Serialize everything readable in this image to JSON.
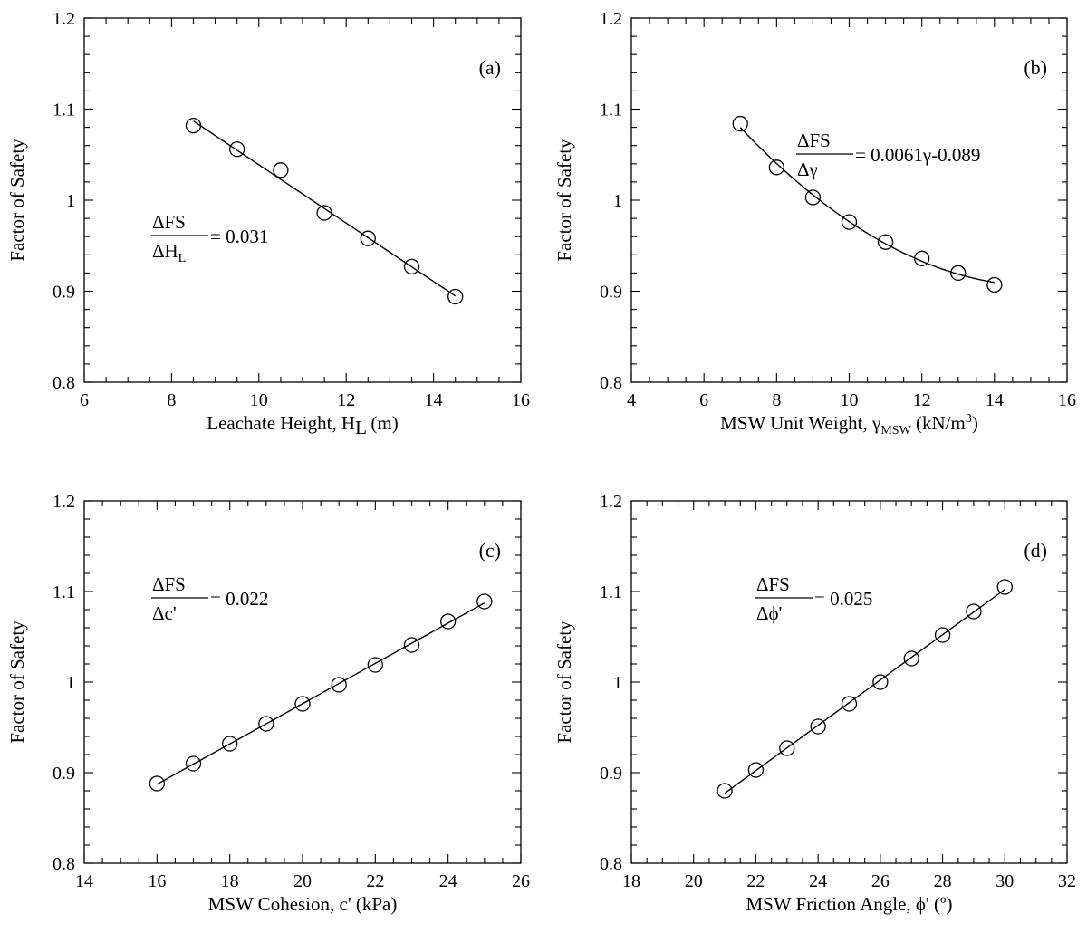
{
  "chart_data": [
    {
      "type": "scatter",
      "panel_tag": "(a)",
      "xlabel": {
        "text": "Leachate Height, H",
        "sub": "L",
        "tail": " (m)"
      },
      "ylabel": "Factor of Safety",
      "xlim": [
        6,
        16
      ],
      "ylim": [
        0.8,
        1.2
      ],
      "x_ticks": [
        "6",
        "8",
        "10",
        "12",
        "14",
        "16"
      ],
      "y_ticks": [
        "0.8",
        "0.9",
        "1",
        "1.1",
        "1.2"
      ],
      "x_minor_step": 0.5,
      "y_minor_step": 0.02,
      "fit": "linear",
      "x": [
        8.5,
        9.5,
        10.5,
        11.5,
        12.5,
        13.5,
        14.5
      ],
      "y": [
        1.082,
        1.056,
        1.033,
        0.986,
        0.958,
        0.927,
        0.894
      ],
      "annotation": {
        "num": "ΔFS",
        "den": "ΔH",
        "den_sub": "L",
        "rhs": " = 0.031"
      },
      "legend": "none"
    },
    {
      "type": "scatter",
      "panel_tag": "(b)",
      "xlabel": {
        "text": "MSW Unit Weight, γ",
        "sub": "MSW",
        "tail": " (kN/m",
        "sup": "3",
        "tail2": ")"
      },
      "ylabel": "Factor of Safety",
      "xlim": [
        4,
        16
      ],
      "ylim": [
        0.8,
        1.2
      ],
      "x_ticks": [
        "4",
        "6",
        "8",
        "10",
        "12",
        "14",
        "16"
      ],
      "y_ticks": [
        "0.8",
        "0.9",
        "1",
        "1.1",
        "1.2"
      ],
      "x_minor_step": 0.5,
      "y_minor_step": 0.02,
      "fit": "quadratic",
      "x": [
        7,
        8,
        9,
        10,
        11,
        12,
        13,
        14
      ],
      "y": [
        1.084,
        1.036,
        1.003,
        0.976,
        0.954,
        0.936,
        0.92,
        0.907
      ],
      "annotation": {
        "num": "ΔFS",
        "den": "Δγ",
        "den_sub": "",
        "rhs": " = 0.0061γ-0.089"
      },
      "legend": "none"
    },
    {
      "type": "scatter",
      "panel_tag": "(c)",
      "xlabel": {
        "text": "MSW Cohesion, c' (kPa)",
        "sub": "",
        "tail": ""
      },
      "ylabel": "Factor of Safety",
      "xlim": [
        14,
        26
      ],
      "ylim": [
        0.8,
        1.2
      ],
      "x_ticks": [
        "14",
        "16",
        "18",
        "20",
        "22",
        "24",
        "26"
      ],
      "y_ticks": [
        "0.8",
        "0.9",
        "1",
        "1.1",
        "1.2"
      ],
      "x_minor_step": 0.5,
      "y_minor_step": 0.02,
      "fit": "linear",
      "x": [
        16,
        17,
        18,
        19,
        20,
        21,
        22,
        23,
        24,
        25
      ],
      "y": [
        0.888,
        0.91,
        0.932,
        0.954,
        0.976,
        0.997,
        1.019,
        1.041,
        1.067,
        1.089
      ],
      "annotation": {
        "num": "ΔFS",
        "den": "Δc'",
        "den_sub": "",
        "rhs": " = 0.022"
      },
      "legend": "none"
    },
    {
      "type": "scatter",
      "panel_tag": "(d)",
      "xlabel": {
        "text": "MSW Friction Angle, ϕ' (º)",
        "sub": "",
        "tail": ""
      },
      "ylabel": "Factor of Safety",
      "xlim": [
        18,
        32
      ],
      "ylim": [
        0.8,
        1.2
      ],
      "x_ticks": [
        "18",
        "20",
        "22",
        "24",
        "26",
        "28",
        "30",
        "32"
      ],
      "y_ticks": [
        "0.8",
        "0.9",
        "1",
        "1.1",
        "1.2"
      ],
      "x_minor_step": 0.5,
      "y_minor_step": 0.02,
      "fit": "linear",
      "x": [
        21,
        22,
        23,
        24,
        25,
        26,
        27,
        28,
        29,
        30
      ],
      "y": [
        0.88,
        0.903,
        0.927,
        0.951,
        0.976,
        1.0,
        1.026,
        1.052,
        1.078,
        1.105
      ],
      "annotation": {
        "num": "ΔFS",
        "den": "Δϕ'",
        "den_sub": "",
        "rhs": " = 0.025"
      },
      "legend": "none"
    }
  ]
}
